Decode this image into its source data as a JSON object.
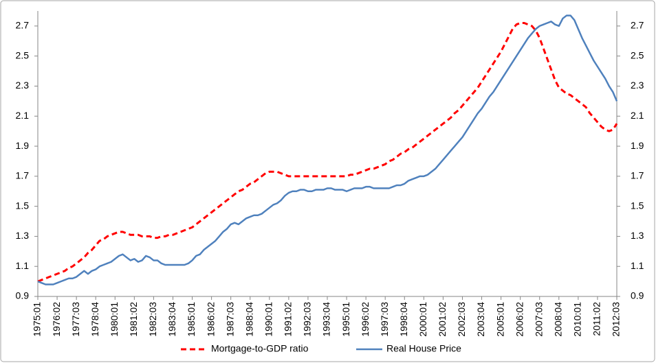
{
  "chart_data": {
    "type": "line",
    "categories": [
      "1975:01",
      null,
      null,
      null,
      null,
      "1976:02",
      null,
      null,
      null,
      null,
      "1977:03",
      null,
      null,
      null,
      null,
      "1978:04",
      null,
      null,
      null,
      null,
      "1980:01",
      null,
      null,
      null,
      null,
      "1981:02",
      null,
      null,
      null,
      null,
      "1982:03",
      null,
      null,
      null,
      null,
      "1983:04",
      null,
      null,
      null,
      null,
      "1985:01",
      null,
      null,
      null,
      null,
      "1986:02",
      null,
      null,
      null,
      null,
      "1987:03",
      null,
      null,
      null,
      null,
      "1988:04",
      null,
      null,
      null,
      null,
      "1990:01",
      null,
      null,
      null,
      null,
      "1991:02",
      null,
      null,
      null,
      null,
      "1992:03",
      null,
      null,
      null,
      null,
      "1993:04",
      null,
      null,
      null,
      null,
      "1995:01",
      null,
      null,
      null,
      null,
      "1996:02",
      null,
      null,
      null,
      null,
      "1997:03",
      null,
      null,
      null,
      null,
      "1998:04",
      null,
      null,
      null,
      null,
      "2000:01",
      null,
      null,
      null,
      null,
      "2001:02",
      null,
      null,
      null,
      null,
      "2002:03",
      null,
      null,
      null,
      null,
      "2003:04",
      null,
      null,
      null,
      null,
      "2005:01",
      null,
      null,
      null,
      null,
      "2006:02",
      null,
      null,
      null,
      null,
      "2007:03",
      null,
      null,
      null,
      null,
      "2008:04",
      null,
      null,
      null,
      null,
      "2010:01",
      null,
      null,
      null,
      null,
      "2011:02",
      null,
      null,
      null,
      null,
      "2012:03"
    ],
    "series": [
      {
        "name": "Mortgage-to-GDP ratio",
        "color": "#ff0000",
        "style": "dashed",
        "values": [
          1.0,
          1.01,
          1.02,
          1.03,
          1.04,
          1.05,
          1.06,
          1.07,
          1.09,
          1.1,
          1.12,
          1.14,
          1.16,
          1.19,
          1.21,
          1.24,
          1.27,
          1.28,
          1.3,
          1.31,
          1.32,
          1.33,
          1.33,
          1.32,
          1.31,
          1.31,
          1.31,
          1.3,
          1.3,
          1.3,
          1.29,
          1.29,
          1.3,
          1.3,
          1.31,
          1.31,
          1.32,
          1.33,
          1.34,
          1.35,
          1.36,
          1.38,
          1.4,
          1.42,
          1.44,
          1.46,
          1.48,
          1.5,
          1.52,
          1.54,
          1.56,
          1.58,
          1.6,
          1.61,
          1.63,
          1.65,
          1.66,
          1.68,
          1.7,
          1.72,
          1.73,
          1.73,
          1.73,
          1.72,
          1.71,
          1.7,
          1.7,
          1.7,
          1.7,
          1.7,
          1.7,
          1.7,
          1.7,
          1.7,
          1.7,
          1.7,
          1.7,
          1.7,
          1.7,
          1.7,
          1.7,
          1.71,
          1.71,
          1.72,
          1.73,
          1.74,
          1.75,
          1.75,
          1.76,
          1.77,
          1.78,
          1.8,
          1.81,
          1.83,
          1.85,
          1.86,
          1.88,
          1.89,
          1.91,
          1.93,
          1.95,
          1.97,
          1.99,
          2.01,
          2.03,
          2.05,
          2.07,
          2.09,
          2.12,
          2.14,
          2.17,
          2.2,
          2.23,
          2.26,
          2.29,
          2.33,
          2.37,
          2.41,
          2.45,
          2.49,
          2.53,
          2.58,
          2.63,
          2.68,
          2.71,
          2.72,
          2.72,
          2.71,
          2.7,
          2.67,
          2.62,
          2.55,
          2.48,
          2.41,
          2.34,
          2.29,
          2.27,
          2.25,
          2.24,
          2.22,
          2.2,
          2.18,
          2.16,
          2.12,
          2.09,
          2.06,
          2.03,
          2.01,
          2.0,
          2.01,
          2.05
        ]
      },
      {
        "name": "Real House Price",
        "color": "#4f81bd",
        "style": "solid",
        "values": [
          1.0,
          0.99,
          0.98,
          0.98,
          0.98,
          0.99,
          1.0,
          1.01,
          1.02,
          1.02,
          1.03,
          1.05,
          1.07,
          1.05,
          1.07,
          1.08,
          1.1,
          1.11,
          1.12,
          1.13,
          1.15,
          1.17,
          1.18,
          1.16,
          1.14,
          1.15,
          1.13,
          1.14,
          1.17,
          1.16,
          1.14,
          1.14,
          1.12,
          1.11,
          1.11,
          1.11,
          1.11,
          1.11,
          1.11,
          1.12,
          1.14,
          1.17,
          1.18,
          1.21,
          1.23,
          1.25,
          1.27,
          1.3,
          1.33,
          1.35,
          1.38,
          1.39,
          1.38,
          1.4,
          1.42,
          1.43,
          1.44,
          1.44,
          1.45,
          1.47,
          1.49,
          1.51,
          1.52,
          1.54,
          1.57,
          1.59,
          1.6,
          1.6,
          1.61,
          1.61,
          1.6,
          1.6,
          1.61,
          1.61,
          1.61,
          1.62,
          1.62,
          1.61,
          1.61,
          1.61,
          1.6,
          1.61,
          1.62,
          1.62,
          1.62,
          1.63,
          1.63,
          1.62,
          1.62,
          1.62,
          1.62,
          1.62,
          1.63,
          1.64,
          1.64,
          1.65,
          1.67,
          1.68,
          1.69,
          1.7,
          1.7,
          1.71,
          1.73,
          1.75,
          1.78,
          1.81,
          1.84,
          1.87,
          1.9,
          1.93,
          1.96,
          2.0,
          2.04,
          2.08,
          2.12,
          2.15,
          2.19,
          2.23,
          2.26,
          2.3,
          2.34,
          2.38,
          2.42,
          2.46,
          2.5,
          2.54,
          2.58,
          2.62,
          2.65,
          2.68,
          2.7,
          2.71,
          2.72,
          2.73,
          2.71,
          2.7,
          2.75,
          2.77,
          2.77,
          2.74,
          2.68,
          2.62,
          2.57,
          2.52,
          2.47,
          2.43,
          2.39,
          2.35,
          2.3,
          2.26,
          2.2
        ]
      }
    ],
    "ylim": [
      0.9,
      2.8
    ],
    "yticks": [
      0.9,
      1.1,
      1.3,
      1.5,
      1.7,
      1.9,
      2.1,
      2.3,
      2.5,
      2.7
    ],
    "y2lim": [
      0.9,
      2.8
    ],
    "y2ticks": [
      0.9,
      1.1,
      1.3,
      1.5,
      1.7,
      1.9,
      2.1,
      2.3,
      2.5,
      2.7
    ],
    "legend": "bottom"
  }
}
